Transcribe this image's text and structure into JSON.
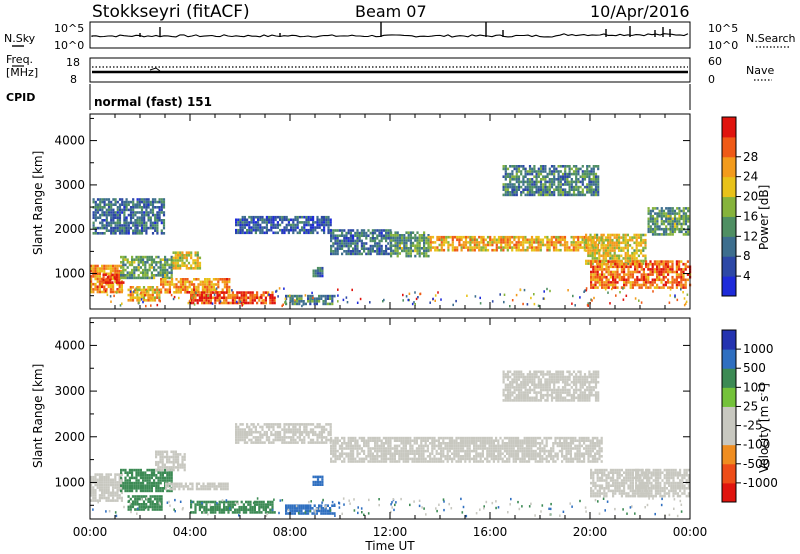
{
  "header": {
    "station": "Stokkseyri (fitACF)",
    "beam": "Beam 07",
    "date": "10/Apr/2016"
  },
  "noise_panel": {
    "left_label": "N.Sky",
    "right_label": "N.Search",
    "ticks": [
      "10^5",
      "10^0"
    ]
  },
  "freq_panel": {
    "left_label_1": "Freq.",
    "left_label_2": "[MHz]",
    "left_ticks": [
      "18",
      "8"
    ],
    "right_label": "Nave",
    "right_ticks": [
      "60",
      "0"
    ]
  },
  "cpid_panel": {
    "label": "CPID",
    "mode_text": "normal (fast) 151"
  },
  "colors": {
    "power_scale": [
      "#1e2bd9",
      "#2d48a6",
      "#3d6e8e",
      "#4f8f63",
      "#86b33c",
      "#e8c21a",
      "#f39b1c",
      "#ef5a17",
      "#e0140e"
    ],
    "velocity_scale": [
      "#2433b0",
      "#2f6fc0",
      "#3c8a54",
      "#74c23a",
      "#c8c8c0",
      "#c8c8c0",
      "#ef8d20",
      "#ee4d18",
      "#e0140e"
    ],
    "ground_scatter": "#c8c8c0"
  },
  "chart_data": [
    {
      "type": "heatmap",
      "title": "",
      "xlabel": "",
      "ylabel": "Slant Range [km]",
      "x_ticks": [
        "00:00",
        "04:00",
        "08:00",
        "12:00",
        "16:00",
        "20:00",
        "00:00"
      ],
      "y_ticks": [
        "1000",
        "2000",
        "3000",
        "4000"
      ],
      "xlim_hours": [
        0,
        24
      ],
      "ylim_km": [
        200,
        4600
      ],
      "colorbar": {
        "label": "Power [dB]",
        "ticks": [
          "4",
          "8",
          "12",
          "16",
          "20",
          "24",
          "28"
        ],
        "range": [
          0,
          30
        ]
      },
      "regions": [
        {
          "t0": 0.0,
          "t1": 1.3,
          "r0": 600,
          "r1": 1200,
          "value": 22
        },
        {
          "t0": 0.5,
          "t1": 1.3,
          "r0": 800,
          "r1": 1000,
          "value": 28
        },
        {
          "t0": 1.2,
          "t1": 3.3,
          "r0": 900,
          "r1": 1400,
          "value": 12
        },
        {
          "t0": 3.3,
          "t1": 4.4,
          "r0": 1100,
          "r1": 1500,
          "value": 18
        },
        {
          "t0": 1.5,
          "t1": 2.8,
          "r0": 380,
          "r1": 720,
          "value": 20
        },
        {
          "t0": 2.8,
          "t1": 5.6,
          "r0": 600,
          "r1": 900,
          "value": 22
        },
        {
          "t0": 4.0,
          "t1": 7.4,
          "r0": 350,
          "r1": 600,
          "value": 26
        },
        {
          "t0": 7.8,
          "t1": 9.8,
          "r0": 330,
          "r1": 520,
          "value": 10
        },
        {
          "t0": 8.9,
          "t1": 9.3,
          "r0": 950,
          "r1": 1150,
          "value": 8
        },
        {
          "t0": 5.8,
          "t1": 9.6,
          "r0": 1900,
          "r1": 2300,
          "value": 6
        },
        {
          "t0": 9.6,
          "t1": 12.0,
          "r0": 1450,
          "r1": 2000,
          "value": 8
        },
        {
          "t0": 12.0,
          "t1": 13.5,
          "r0": 1400,
          "r1": 1950,
          "value": 12
        },
        {
          "t0": 13.5,
          "t1": 20.5,
          "r0": 1500,
          "r1": 1850,
          "value": 20
        },
        {
          "t0": 19.8,
          "t1": 22.2,
          "r0": 1250,
          "r1": 1900,
          "value": 18
        },
        {
          "t0": 20.0,
          "t1": 24.0,
          "r0": 700,
          "r1": 1300,
          "value": 24
        },
        {
          "t0": 16.5,
          "t1": 20.3,
          "r0": 2800,
          "r1": 3450,
          "value": 10
        },
        {
          "t0": 0.1,
          "t1": 3.0,
          "r0": 1900,
          "r1": 2700,
          "value": 8
        },
        {
          "t0": 22.3,
          "t1": 23.9,
          "r0": 1900,
          "r1": 2500,
          "value": 12
        }
      ]
    },
    {
      "type": "heatmap",
      "title": "",
      "xlabel": "Time UT",
      "ylabel": "Slant Range [km]",
      "x_ticks": [
        "00:00",
        "04:00",
        "08:00",
        "12:00",
        "16:00",
        "20:00",
        "00:00"
      ],
      "y_ticks": [
        "1000",
        "2000",
        "3000",
        "4000"
      ],
      "xlim_hours": [
        0,
        24
      ],
      "ylim_km": [
        200,
        4600
      ],
      "colorbar": {
        "label": "Velocity [m s^-1]",
        "ticks": [
          "1000",
          "500",
          "100",
          "25",
          "-25",
          "-100",
          "-500",
          "-1000"
        ]
      },
      "regions": [
        {
          "t0": 0.0,
          "t1": 1.3,
          "r0": 600,
          "r1": 1200,
          "value": "ground"
        },
        {
          "t0": 1.2,
          "t1": 3.3,
          "r0": 800,
          "r1": 1300,
          "value": 100
        },
        {
          "t0": 2.6,
          "t1": 3.8,
          "r0": 1300,
          "r1": 1700,
          "value": -100
        },
        {
          "t0": 1.5,
          "t1": 2.9,
          "r0": 380,
          "r1": 720,
          "value": 100
        },
        {
          "t0": 4.0,
          "t1": 7.4,
          "r0": 350,
          "r1": 600,
          "value": 100
        },
        {
          "t0": 3.0,
          "t1": 5.5,
          "r0": 850,
          "r1": 1000,
          "value": "ground"
        },
        {
          "t0": 7.8,
          "t1": 9.8,
          "r0": 330,
          "r1": 520,
          "value": 500
        },
        {
          "t0": 8.9,
          "t1": 9.3,
          "r0": 950,
          "r1": 1150,
          "value": 500
        },
        {
          "t0": 5.8,
          "t1": 9.6,
          "r0": 1900,
          "r1": 2300,
          "value": "ground"
        },
        {
          "t0": 9.6,
          "t1": 20.5,
          "r0": 1450,
          "r1": 2000,
          "value": "ground"
        },
        {
          "t0": 16.5,
          "t1": 20.3,
          "r0": 2800,
          "r1": 3450,
          "value": "ground"
        },
        {
          "t0": 20.0,
          "t1": 22.3,
          "r0": 700,
          "r1": 1300,
          "value": -100
        },
        {
          "t0": 21.8,
          "t1": 24.0,
          "r0": 700,
          "r1": 1300,
          "value": "ground"
        }
      ]
    }
  ]
}
